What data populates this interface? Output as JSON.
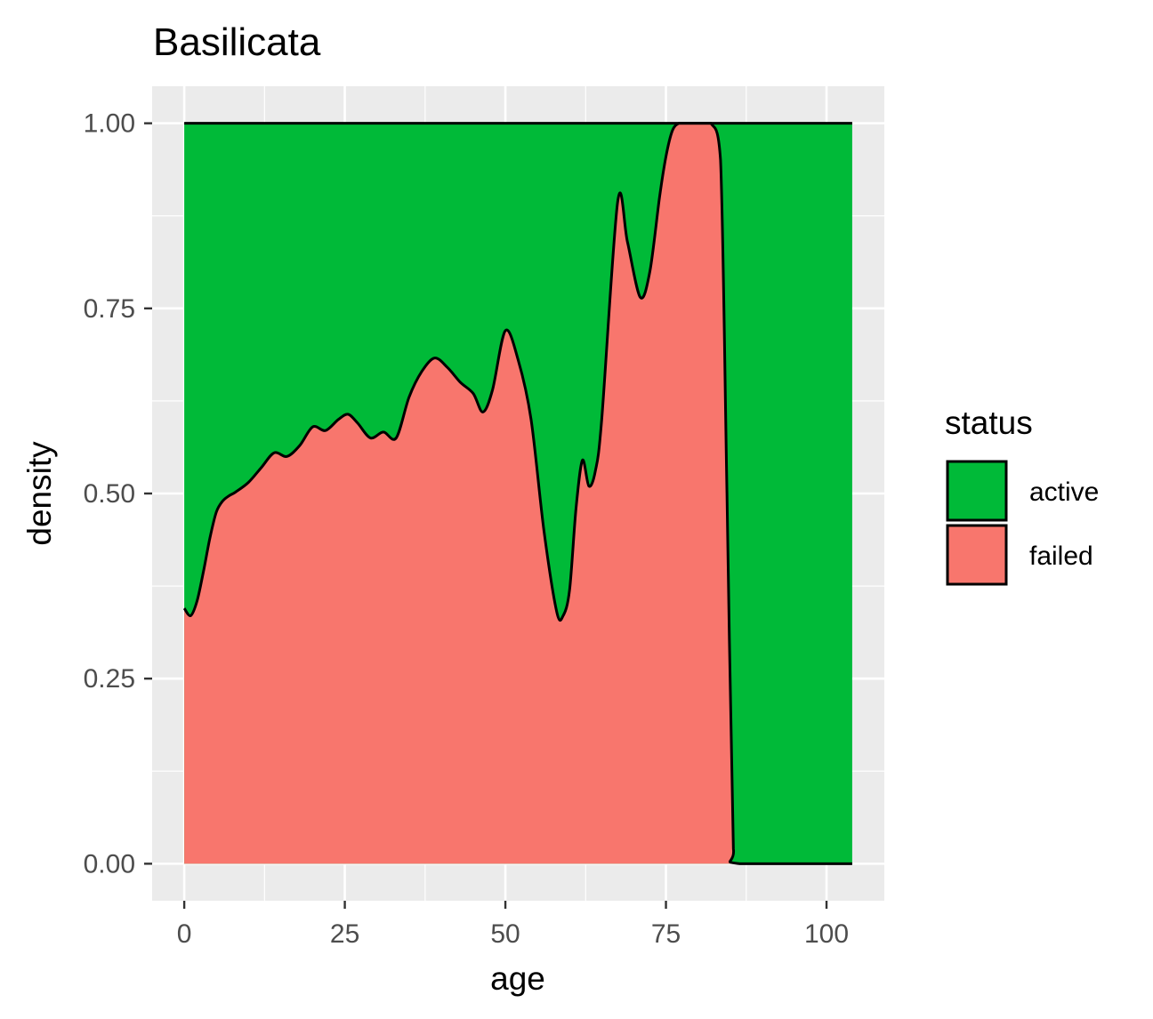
{
  "chart_data": {
    "type": "area",
    "stacked": "fill",
    "title": "Basilicata",
    "xlabel": "age",
    "ylabel": "density",
    "xlim": [
      -5,
      109
    ],
    "ylim": [
      -0.05,
      1.05
    ],
    "x_ticks": [
      0,
      25,
      50,
      75,
      100
    ],
    "x_tick_labels": [
      "0",
      "25",
      "50",
      "75",
      "100"
    ],
    "y_ticks": [
      0,
      0.25,
      0.5,
      0.75,
      1
    ],
    "y_tick_labels": [
      "0.00",
      "0.25",
      "0.50",
      "0.75",
      "1.00"
    ],
    "grid": true,
    "legend": {
      "title": "status",
      "position": "right",
      "entries": [
        {
          "name": "active",
          "color": "#00BA38"
        },
        {
          "name": "failed",
          "color": "#F8766D"
        }
      ]
    },
    "boundary_curve": {
      "description_key": "failed share (lower band); active fills the rest up to 1",
      "x": [
        0,
        1,
        2,
        3,
        4,
        5,
        6,
        7,
        8,
        10,
        12,
        14,
        16,
        18,
        20,
        22,
        24,
        25.5,
        27,
        29,
        31,
        33,
        35,
        37,
        39,
        41,
        43,
        45,
        46.5,
        48,
        50,
        52,
        54,
        56,
        58,
        59,
        60,
        61,
        62,
        63,
        64,
        65,
        67.5,
        69,
        71,
        72.5,
        74,
        75,
        76,
        77,
        78,
        80,
        82,
        83.5,
        84.5,
        85.5,
        86.5,
        104
      ],
      "y": [
        0.345,
        0.335,
        0.355,
        0.395,
        0.44,
        0.475,
        0.49,
        0.497,
        0.502,
        0.515,
        0.535,
        0.555,
        0.55,
        0.565,
        0.59,
        0.585,
        0.6,
        0.607,
        0.595,
        0.575,
        0.583,
        0.575,
        0.63,
        0.665,
        0.683,
        0.67,
        0.65,
        0.635,
        0.61,
        0.64,
        0.72,
        0.68,
        0.6,
        0.45,
        0.34,
        0.335,
        0.37,
        0.48,
        0.545,
        0.51,
        0.53,
        0.6,
        0.895,
        0.84,
        0.765,
        0.8,
        0.9,
        0.955,
        0.99,
        1.0,
        1.0,
        1.0,
        1.0,
        0.95,
        0.5,
        0.02,
        0.0,
        0.0
      ]
    },
    "series": [
      {
        "name": "failed",
        "color": "#F8766D",
        "values_key": "boundary_curve.y"
      },
      {
        "name": "active",
        "color": "#00BA38",
        "values_key": "1 - boundary_curve.y"
      }
    ]
  }
}
